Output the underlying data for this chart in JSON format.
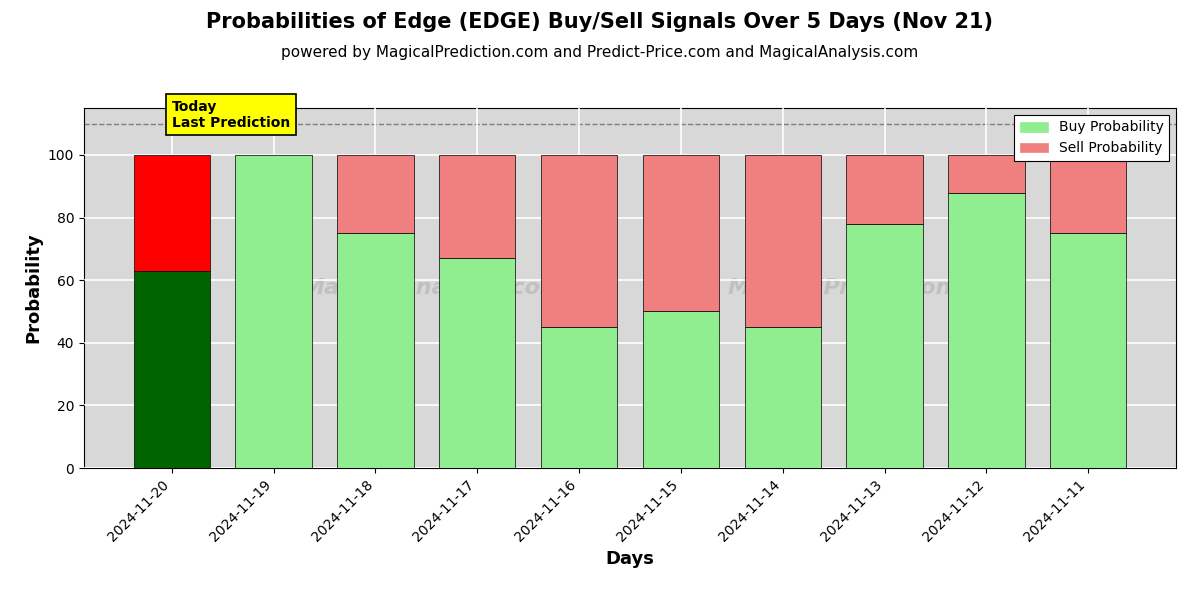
{
  "title": "Probabilities of Edge (EDGE) Buy/Sell Signals Over 5 Days (Nov 21)",
  "subtitle": "powered by MagicalPrediction.com and Predict-Price.com and MagicalAnalysis.com",
  "xlabel": "Days",
  "ylabel": "Probability",
  "categories": [
    "2024-11-20",
    "2024-11-19",
    "2024-11-18",
    "2024-11-17",
    "2024-11-16",
    "2024-11-15",
    "2024-11-14",
    "2024-11-13",
    "2024-11-12",
    "2024-11-11"
  ],
  "buy_values": [
    63,
    100,
    75,
    67,
    45,
    50,
    45,
    78,
    88,
    75
  ],
  "sell_values": [
    37,
    0,
    25,
    33,
    55,
    50,
    55,
    22,
    12,
    25
  ],
  "buy_color_today": "#006400",
  "sell_color_today": "#ff0000",
  "buy_color_normal": "#90EE90",
  "sell_color_normal": "#F08080",
  "today_annotation_bg": "#ffff00",
  "today_annotation_text": "Today\nLast Prediction",
  "ylim": [
    0,
    115
  ],
  "yticks": [
    0,
    20,
    40,
    60,
    80,
    100
  ],
  "dashed_line_y": 110,
  "legend_buy_label": "Buy Probability",
  "legend_sell_label": "Sell Probability",
  "title_fontsize": 15,
  "subtitle_fontsize": 11,
  "axis_label_fontsize": 13,
  "tick_fontsize": 10,
  "bar_width": 0.75
}
